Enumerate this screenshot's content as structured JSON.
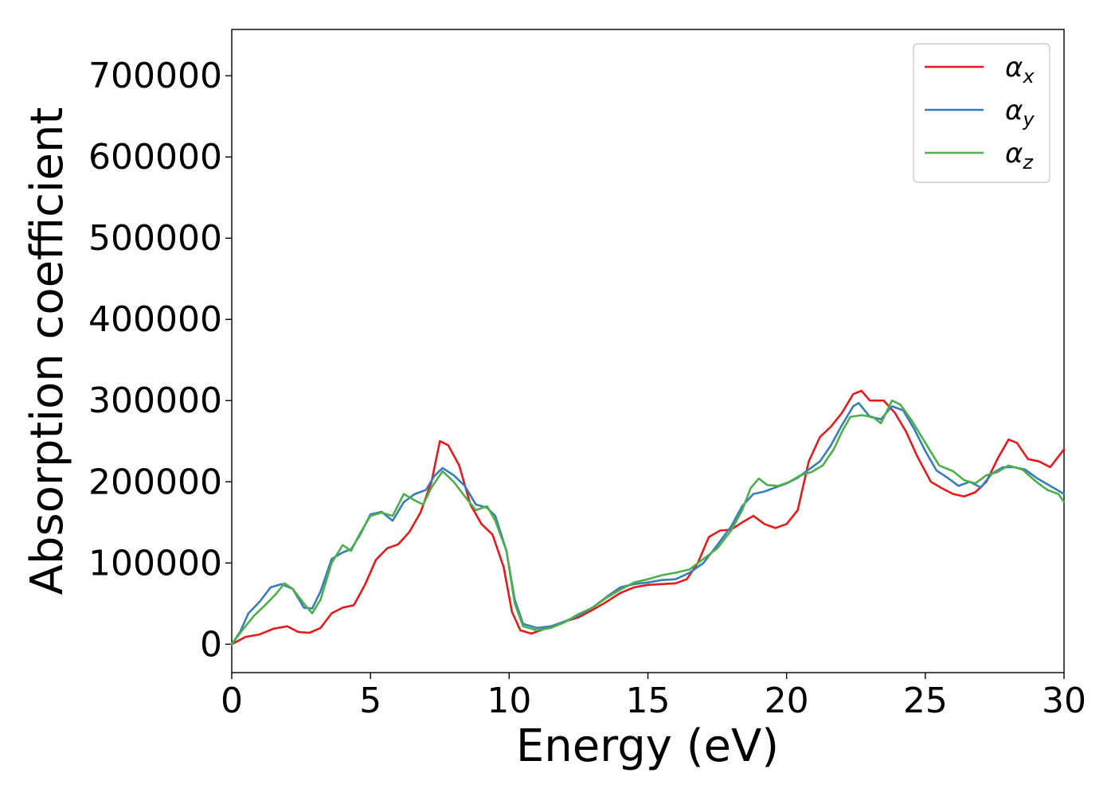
{
  "chart_data": {
    "type": "line",
    "title": "",
    "xlabel": "Energy (eV)",
    "ylabel": "Absorption coefficient",
    "xlim": [
      0,
      30
    ],
    "ylim": [
      -35000,
      757000
    ],
    "xticks": [
      0,
      5,
      10,
      15,
      20,
      25,
      30
    ],
    "yticks": [
      0,
      100000,
      200000,
      300000,
      400000,
      500000,
      600000,
      700000
    ],
    "grid": false,
    "legend_position": "top-right",
    "series": [
      {
        "name": "α",
        "subscript": "x",
        "color": "#e41a1c",
        "points": [
          [
            0,
            0
          ],
          [
            0.5,
            9000
          ],
          [
            1,
            12000
          ],
          [
            1.5,
            19000
          ],
          [
            2,
            22000
          ],
          [
            2.4,
            15000
          ],
          [
            2.8,
            14000
          ],
          [
            3.2,
            20000
          ],
          [
            3.6,
            38000
          ],
          [
            4,
            45000
          ],
          [
            4.4,
            48000
          ],
          [
            4.8,
            73000
          ],
          [
            5.2,
            104000
          ],
          [
            5.6,
            118000
          ],
          [
            6,
            123000
          ],
          [
            6.4,
            138000
          ],
          [
            6.8,
            162000
          ],
          [
            7.2,
            200000
          ],
          [
            7.5,
            250000
          ],
          [
            7.8,
            245000
          ],
          [
            8.2,
            220000
          ],
          [
            8.6,
            172000
          ],
          [
            9,
            148000
          ],
          [
            9.4,
            135000
          ],
          [
            9.8,
            95000
          ],
          [
            10.1,
            40000
          ],
          [
            10.4,
            17000
          ],
          [
            10.8,
            13000
          ],
          [
            11.2,
            18000
          ],
          [
            11.6,
            22000
          ],
          [
            12,
            28000
          ],
          [
            12.5,
            33000
          ],
          [
            13,
            42000
          ],
          [
            13.5,
            52000
          ],
          [
            14,
            63000
          ],
          [
            14.5,
            70000
          ],
          [
            15,
            73000
          ],
          [
            15.5,
            74000
          ],
          [
            16,
            75000
          ],
          [
            16.4,
            80000
          ],
          [
            16.8,
            100000
          ],
          [
            17.2,
            132000
          ],
          [
            17.6,
            140000
          ],
          [
            18,
            141000
          ],
          [
            18.4,
            150000
          ],
          [
            18.8,
            158000
          ],
          [
            19.2,
            148000
          ],
          [
            19.6,
            143000
          ],
          [
            20,
            148000
          ],
          [
            20.4,
            165000
          ],
          [
            20.8,
            225000
          ],
          [
            21.2,
            255000
          ],
          [
            21.6,
            268000
          ],
          [
            22,
            285000
          ],
          [
            22.4,
            308000
          ],
          [
            22.7,
            312000
          ],
          [
            23,
            300000
          ],
          [
            23.5,
            300000
          ],
          [
            23.9,
            285000
          ],
          [
            24.3,
            262000
          ],
          [
            24.7,
            232000
          ],
          [
            25.2,
            200000
          ],
          [
            25.6,
            192000
          ],
          [
            26,
            185000
          ],
          [
            26.4,
            182000
          ],
          [
            26.8,
            187000
          ],
          [
            27.2,
            200000
          ],
          [
            27.6,
            228000
          ],
          [
            28,
            252000
          ],
          [
            28.3,
            248000
          ],
          [
            28.7,
            228000
          ],
          [
            29.1,
            225000
          ],
          [
            29.5,
            218000
          ],
          [
            30,
            240000
          ]
        ]
      },
      {
        "name": "α",
        "subscript": "y",
        "color": "#377eb8",
        "points": [
          [
            0,
            0
          ],
          [
            0.3,
            15000
          ],
          [
            0.6,
            38000
          ],
          [
            1,
            52000
          ],
          [
            1.4,
            70000
          ],
          [
            1.8,
            74000
          ],
          [
            2.2,
            68000
          ],
          [
            2.6,
            45000
          ],
          [
            2.9,
            44000
          ],
          [
            3.2,
            65000
          ],
          [
            3.6,
            105000
          ],
          [
            4,
            113000
          ],
          [
            4.3,
            117000
          ],
          [
            4.6,
            133000
          ],
          [
            5,
            160000
          ],
          [
            5.4,
            163000
          ],
          [
            5.8,
            152000
          ],
          [
            6.2,
            175000
          ],
          [
            6.6,
            185000
          ],
          [
            7,
            190000
          ],
          [
            7.3,
            207000
          ],
          [
            7.6,
            217000
          ],
          [
            8,
            208000
          ],
          [
            8.4,
            195000
          ],
          [
            8.8,
            172000
          ],
          [
            9.2,
            168000
          ],
          [
            9.5,
            158000
          ],
          [
            9.9,
            115000
          ],
          [
            10.2,
            55000
          ],
          [
            10.5,
            25000
          ],
          [
            11,
            20000
          ],
          [
            11.5,
            22000
          ],
          [
            12,
            28000
          ],
          [
            12.5,
            35000
          ],
          [
            13,
            45000
          ],
          [
            13.5,
            58000
          ],
          [
            14,
            70000
          ],
          [
            14.5,
            74000
          ],
          [
            15,
            76000
          ],
          [
            15.5,
            79000
          ],
          [
            16,
            80000
          ],
          [
            16.5,
            88000
          ],
          [
            17,
            100000
          ],
          [
            17.5,
            122000
          ],
          [
            18,
            145000
          ],
          [
            18.4,
            170000
          ],
          [
            18.8,
            185000
          ],
          [
            19.2,
            188000
          ],
          [
            19.6,
            193000
          ],
          [
            20,
            198000
          ],
          [
            20.4,
            205000
          ],
          [
            20.8,
            215000
          ],
          [
            21.2,
            225000
          ],
          [
            21.6,
            245000
          ],
          [
            22,
            270000
          ],
          [
            22.4,
            293000
          ],
          [
            22.6,
            297000
          ],
          [
            23,
            280000
          ],
          [
            23.4,
            277000
          ],
          [
            23.8,
            293000
          ],
          [
            24.2,
            288000
          ],
          [
            24.6,
            265000
          ],
          [
            25,
            238000
          ],
          [
            25.4,
            214000
          ],
          [
            25.8,
            205000
          ],
          [
            26.2,
            195000
          ],
          [
            26.6,
            200000
          ],
          [
            27,
            193000
          ],
          [
            27.4,
            210000
          ],
          [
            27.8,
            218000
          ],
          [
            28.2,
            218000
          ],
          [
            28.6,
            215000
          ],
          [
            29,
            205000
          ],
          [
            29.5,
            195000
          ],
          [
            30,
            185000
          ]
        ]
      },
      {
        "name": "α",
        "subscript": "z",
        "color": "#4daf4a",
        "points": [
          [
            0,
            0
          ],
          [
            0.4,
            18000
          ],
          [
            0.8,
            35000
          ],
          [
            1.2,
            48000
          ],
          [
            1.6,
            62000
          ],
          [
            1.9,
            75000
          ],
          [
            2.2,
            68000
          ],
          [
            2.6,
            50000
          ],
          [
            2.9,
            38000
          ],
          [
            3.2,
            55000
          ],
          [
            3.6,
            100000
          ],
          [
            4,
            122000
          ],
          [
            4.3,
            115000
          ],
          [
            4.6,
            135000
          ],
          [
            5,
            158000
          ],
          [
            5.4,
            162000
          ],
          [
            5.8,
            158000
          ],
          [
            6.2,
            185000
          ],
          [
            6.6,
            177000
          ],
          [
            6.9,
            172000
          ],
          [
            7.2,
            193000
          ],
          [
            7.6,
            213000
          ],
          [
            8,
            200000
          ],
          [
            8.4,
            182000
          ],
          [
            8.8,
            165000
          ],
          [
            9.2,
            170000
          ],
          [
            9.5,
            152000
          ],
          [
            9.9,
            115000
          ],
          [
            10.2,
            50000
          ],
          [
            10.5,
            22000
          ],
          [
            11,
            17000
          ],
          [
            11.5,
            20000
          ],
          [
            12,
            27000
          ],
          [
            12.5,
            37000
          ],
          [
            13,
            45000
          ],
          [
            13.5,
            57000
          ],
          [
            14,
            67000
          ],
          [
            14.5,
            76000
          ],
          [
            15,
            80000
          ],
          [
            15.5,
            85000
          ],
          [
            16,
            88000
          ],
          [
            16.5,
            92000
          ],
          [
            17,
            105000
          ],
          [
            17.5,
            118000
          ],
          [
            18,
            140000
          ],
          [
            18.4,
            165000
          ],
          [
            18.7,
            192000
          ],
          [
            19,
            204000
          ],
          [
            19.3,
            196000
          ],
          [
            19.7,
            195000
          ],
          [
            20.1,
            200000
          ],
          [
            20.5,
            208000
          ],
          [
            20.9,
            212000
          ],
          [
            21.3,
            220000
          ],
          [
            21.7,
            240000
          ],
          [
            22,
            262000
          ],
          [
            22.3,
            280000
          ],
          [
            22.7,
            282000
          ],
          [
            23.1,
            280000
          ],
          [
            23.4,
            272000
          ],
          [
            23.8,
            300000
          ],
          [
            24.1,
            295000
          ],
          [
            24.5,
            276000
          ],
          [
            25,
            248000
          ],
          [
            25.5,
            220000
          ],
          [
            26,
            213000
          ],
          [
            26.4,
            202000
          ],
          [
            26.8,
            198000
          ],
          [
            27.2,
            208000
          ],
          [
            27.6,
            212000
          ],
          [
            28,
            220000
          ],
          [
            28.5,
            215000
          ],
          [
            29,
            200000
          ],
          [
            29.4,
            190000
          ],
          [
            29.8,
            185000
          ],
          [
            30,
            175000
          ]
        ]
      }
    ]
  }
}
